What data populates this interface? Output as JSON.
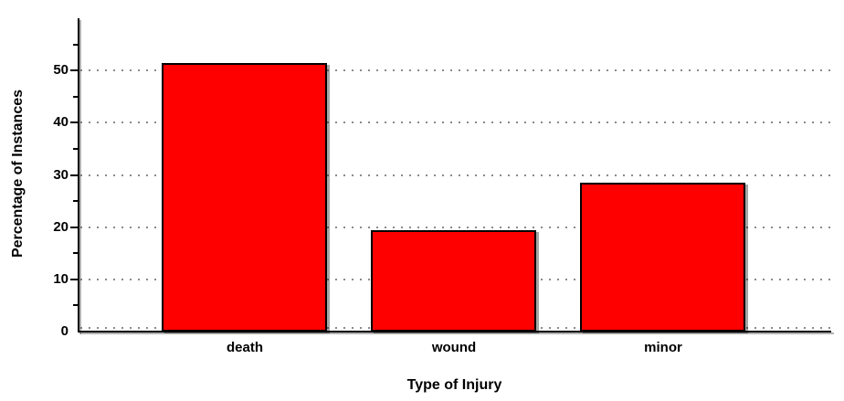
{
  "chart_data": {
    "type": "bar",
    "title": "",
    "xlabel": "Type of Injury",
    "ylabel": "Percentage of Instances",
    "categories": [
      "death",
      "wound",
      "minor"
    ],
    "values": [
      51.5,
      19.5,
      28.5
    ],
    "ylim": [
      0,
      60
    ],
    "yticks_major": [
      0,
      10,
      20,
      30,
      40,
      50
    ],
    "yticks_minor": [
      5,
      15,
      25,
      35,
      45,
      55
    ],
    "grid": "horizontal dotted lines at major ticks",
    "legend_position": "none",
    "bar_color": "#ff0000",
    "bar_border_color": "#000000",
    "gridline_color": "#8a8a8a",
    "axis_color": "#000000",
    "background_color": "#ffffff"
  }
}
